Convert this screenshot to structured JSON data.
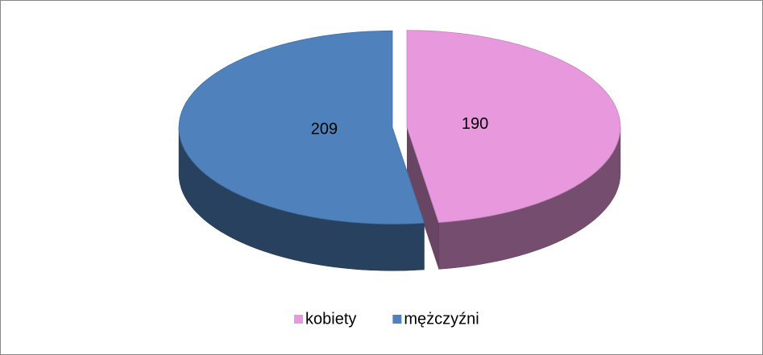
{
  "chart_data": {
    "type": "pie",
    "categories": [
      "kobiety",
      "mężczyźni"
    ],
    "values": [
      190,
      209
    ],
    "colors": [
      "#e899dd",
      "#4f81bd"
    ],
    "legend": "bottom"
  }
}
